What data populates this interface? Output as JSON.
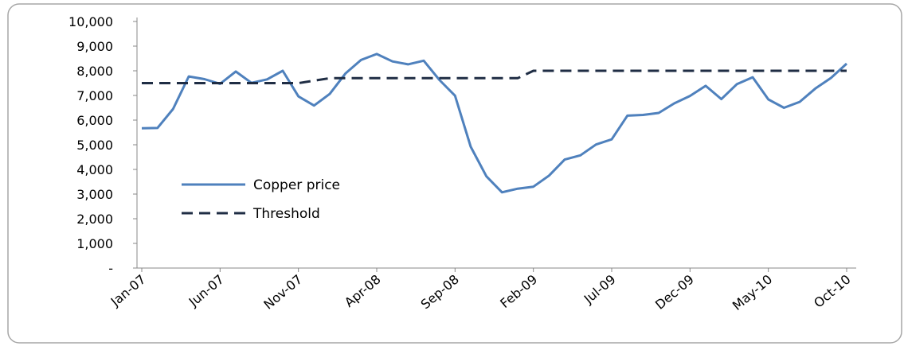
{
  "chart_data": {
    "type": "line",
    "categories": [
      "Jan-07",
      null,
      null,
      null,
      null,
      "Jun-07",
      null,
      null,
      null,
      null,
      "Nov-07",
      null,
      null,
      null,
      null,
      "Apr-08",
      null,
      null,
      null,
      null,
      "Sep-08",
      null,
      null,
      null,
      null,
      "Feb-09",
      null,
      null,
      null,
      null,
      "Jul-09",
      null,
      null,
      null,
      null,
      "Dec-09",
      null,
      null,
      null,
      null,
      "May-10",
      null,
      null,
      null,
      null,
      "Oct-10"
    ],
    "series": [
      {
        "name": "Copper price",
        "color": "#4f81bd",
        "values": [
          5670,
          5680,
          6450,
          7770,
          7660,
          7470,
          7970,
          7510,
          7650,
          8000,
          6960,
          6590,
          7060,
          7890,
          8440,
          8680,
          8380,
          8260,
          8410,
          7630,
          6990,
          4920,
          3720,
          3070,
          3220,
          3300,
          3750,
          4400,
          4570,
          5010,
          5220,
          6180,
          6210,
          6290,
          6680,
          6980,
          7390,
          6850,
          7460,
          7740,
          6840,
          6500,
          6740,
          7280,
          7710,
          8290
        ]
      },
      {
        "name": "Threshold",
        "color": "#1f2d44",
        "dashed": true,
        "values": [
          7500,
          7500,
          7500,
          7500,
          7500,
          7500,
          7500,
          7500,
          7500,
          7500,
          7500,
          7600,
          7700,
          7700,
          7700,
          7700,
          7700,
          7700,
          7700,
          7700,
          7700,
          7700,
          7700,
          7700,
          7700,
          8000,
          8000,
          8000,
          8000,
          8000,
          8000,
          8000,
          8000,
          8000,
          8000,
          8000,
          8000,
          8000,
          8000,
          8000,
          8000,
          8000,
          8000,
          8000,
          8000,
          8000
        ]
      }
    ],
    "ylim": [
      0,
      10000
    ],
    "yticks": [
      {
        "value": 0,
        "label": "-"
      },
      {
        "value": 1000,
        "label": "1,000"
      },
      {
        "value": 2000,
        "label": "2,000"
      },
      {
        "value": 3000,
        "label": "3,000"
      },
      {
        "value": 4000,
        "label": "4,000"
      },
      {
        "value": 5000,
        "label": "5,000"
      },
      {
        "value": 6000,
        "label": "6,000"
      },
      {
        "value": 7000,
        "label": "7,000"
      },
      {
        "value": 8000,
        "label": "8,000"
      },
      {
        "value": 9000,
        "label": "9,000"
      },
      {
        "value": 10000,
        "label": "10,000"
      }
    ],
    "grid": false,
    "legend": "center-left"
  }
}
